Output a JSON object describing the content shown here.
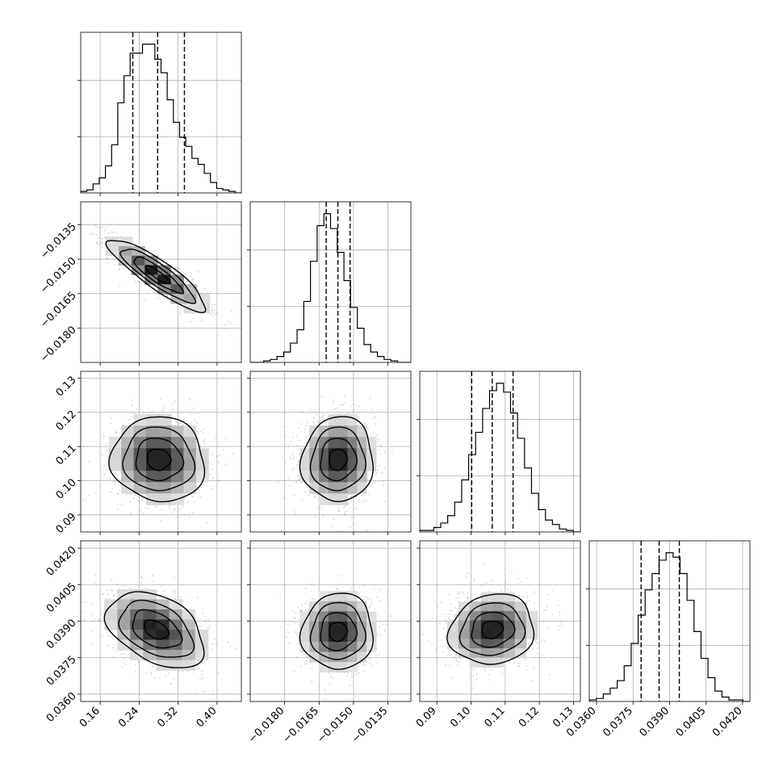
{
  "chart_data": {
    "type": "corner",
    "colors": {
      "line": "#000000",
      "grid": "#b0b0b0",
      "background": "#ffffff",
      "scatter": "#808080"
    },
    "grid": true,
    "parameters": [
      {
        "range": [
          0.12,
          0.45
        ],
        "ticks": [
          0.16,
          0.24,
          0.32,
          0.4
        ],
        "tick_labels": [
          "0.16",
          "0.24",
          "0.32",
          "0.40"
        ],
        "quantiles": [
          0.227,
          0.278,
          0.333
        ]
      },
      {
        "range": [
          -0.0195,
          -0.0125
        ],
        "ticks": [
          -0.018,
          -0.0165,
          -0.015,
          -0.0135
        ],
        "tick_labels": [
          "−0.0180",
          "−0.0165",
          "−0.0150",
          "−0.0135"
        ],
        "quantiles": [
          -0.01619,
          -0.01568,
          -0.01515
        ]
      },
      {
        "range": [
          0.085,
          0.132
        ],
        "ticks": [
          0.09,
          0.1,
          0.11,
          0.12,
          0.13
        ],
        "tick_labels": [
          "0.09",
          "0.10",
          "0.11",
          "0.12",
          "0.13"
        ],
        "quantiles": [
          0.1002,
          0.1062,
          0.1123
        ]
      },
      {
        "range": [
          0.0357,
          0.0423
        ],
        "ticks": [
          0.036,
          0.0375,
          0.039,
          0.0405,
          0.042
        ],
        "tick_labels": [
          "0.0360",
          "0.0375",
          "0.0390",
          "0.0405",
          "0.0420"
        ],
        "quantiles": [
          0.03783,
          0.03857,
          0.0394
        ]
      }
    ],
    "histograms": [
      {
        "param": 0,
        "bins": [
          0.12,
          0.45
        ],
        "counts": [
          1,
          2,
          6,
          10,
          18,
          32,
          60,
          78,
          93,
          93,
          99,
          99,
          89,
          80,
          62,
          47,
          37,
          31,
          23,
          19,
          13,
          7,
          3,
          2,
          1,
          0
        ]
      },
      {
        "param": 1,
        "bins": [
          -0.0195,
          -0.0125
        ],
        "counts": [
          0,
          0,
          1,
          2,
          4,
          7,
          13,
          22,
          41,
          68,
          92,
          100,
          90,
          74,
          55,
          37,
          23,
          12,
          7,
          4,
          2,
          1,
          0,
          0
        ]
      },
      {
        "param": 2,
        "bins": [
          0.085,
          0.132
        ],
        "counts": [
          1,
          1,
          3,
          6,
          11,
          20,
          35,
          52,
          67,
          83,
          95,
          100,
          94,
          80,
          63,
          43,
          26,
          15,
          8,
          5,
          2,
          1,
          0
        ]
      },
      {
        "param": 3,
        "bins": [
          0.0357,
          0.0423
        ],
        "counts": [
          1,
          2,
          5,
          9,
          14,
          24,
          39,
          58,
          75,
          86,
          95,
          100,
          97,
          86,
          68,
          47,
          29,
          16,
          7,
          3,
          1,
          1,
          0
        ]
      }
    ],
    "joint": [
      {
        "x": 0,
        "y": 1,
        "mean": [
          0.278,
          -0.01568
        ],
        "std": [
          0.05,
          0.00078
        ],
        "corr": -0.88
      },
      {
        "x": 0,
        "y": 2,
        "mean": [
          0.28,
          0.1062
        ],
        "std": [
          0.048,
          0.0062
        ],
        "corr": -0.05
      },
      {
        "x": 1,
        "y": 2,
        "mean": [
          -0.01568,
          0.1062
        ],
        "std": [
          0.00078,
          0.0062
        ],
        "corr": 0.04
      },
      {
        "x": 0,
        "y": 3,
        "mean": [
          0.275,
          0.03865
        ],
        "std": [
          0.05,
          0.00078
        ],
        "corr": -0.4
      },
      {
        "x": 1,
        "y": 3,
        "mean": [
          -0.01568,
          0.03857
        ],
        "std": [
          0.00078,
          0.00078
        ],
        "corr": 0.03
      },
      {
        "x": 2,
        "y": 3,
        "mean": [
          0.1062,
          0.03865
        ],
        "std": [
          0.0062,
          0.00072
        ],
        "corr": 0.1
      }
    ]
  }
}
